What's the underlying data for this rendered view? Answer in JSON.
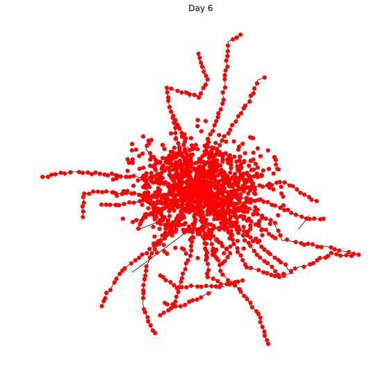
{
  "figure": {
    "title": "Day 6"
  },
  "colors": {
    "node": "#ff0000",
    "edge": "#000000",
    "background": "#ffffff"
  }
}
